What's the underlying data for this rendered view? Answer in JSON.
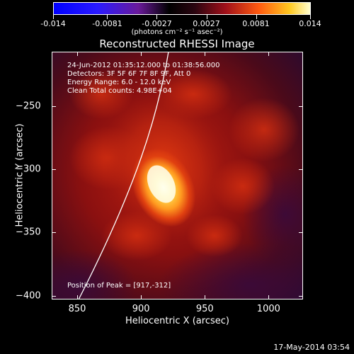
{
  "colorbar": {
    "tick_labels": [
      "-0.014",
      "-0.0081",
      "-0.0027",
      "0.0027",
      "0.0081",
      "0.014"
    ],
    "tick_values": [
      -0.014,
      -0.0081,
      -0.0027,
      0.0027,
      0.0081,
      0.014
    ],
    "range": [
      -0.014,
      0.014
    ],
    "units_label": "(photons cm⁻² s⁻¹ asec⁻²)"
  },
  "title": "Reconstructed RHESSI Image",
  "annotations": {
    "time_range": "24-Jun-2012 01:35:12.000 to 01:38:56.000",
    "detectors": "Detectors: 3F 5F 6F 7F 8F 9F, Att 0",
    "energy_range": "Energy Range: 6.0 - 12.0 keV",
    "clean_counts": "Clean    Total counts: 4.98E+04",
    "peak_position": "Position of Peak = [917,-312]"
  },
  "axes": {
    "x_title": "Heliocentric X (arcsec)",
    "y_title": "Heliocentric Y (arcsec)",
    "x_range": [
      830,
      1027
    ],
    "y_range": [
      -403,
      -207
    ],
    "x_ticks": [
      {
        "value": 850,
        "label": "850"
      },
      {
        "value": 900,
        "label": "900"
      },
      {
        "value": 950,
        "label": "950"
      },
      {
        "value": 1000,
        "label": "1000"
      }
    ],
    "y_ticks": [
      {
        "value": -250,
        "label": "−250"
      },
      {
        "value": -300,
        "label": "−300"
      },
      {
        "value": -350,
        "label": "−350"
      },
      {
        "value": -400,
        "label": "−400"
      }
    ]
  },
  "image": {
    "peak_x": 917,
    "peak_y": -312,
    "colormap": [
      "#1a0033",
      "#5a0a3a",
      "#9b1a1a",
      "#d2331a",
      "#ff7a1a",
      "#ffd23a",
      "#ffffe0"
    ]
  },
  "timestamp": "17-May-2014 03:54"
}
